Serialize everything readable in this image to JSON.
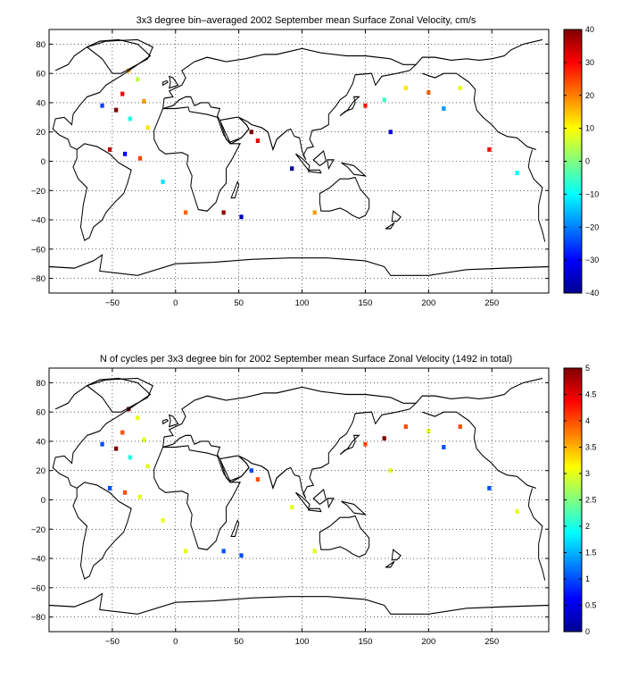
{
  "chart_data": [
    {
      "type": "heatmap",
      "title": "3x3 degree bin–averaged 2002 September mean Surface Zonal Velocity, cm/s",
      "xlabel": "",
      "ylabel": "",
      "xlim": [
        -100,
        295
      ],
      "ylim": [
        -90,
        90
      ],
      "xticks": [
        -50,
        0,
        50,
        100,
        150,
        200,
        250
      ],
      "yticks": [
        -80,
        -60,
        -40,
        -20,
        0,
        20,
        40,
        60,
        80
      ],
      "grid": true,
      "colorbar": {
        "min": -40,
        "max": 40,
        "ticks": [
          -40,
          -30,
          -20,
          -10,
          0,
          10,
          20,
          30,
          40
        ],
        "colormap": "jet"
      },
      "bins_sample": [
        {
          "lon": -37,
          "lat": 62,
          "v": 15
        },
        {
          "lon": -30,
          "lat": 56,
          "v": 5
        },
        {
          "lon": -42,
          "lat": 46,
          "v": 30
        },
        {
          "lon": -25,
          "lat": 41,
          "v": 18
        },
        {
          "lon": -58,
          "lat": 38,
          "v": -25
        },
        {
          "lon": -47,
          "lat": 35,
          "v": 40
        },
        {
          "lon": -36,
          "lat": 29,
          "v": -8
        },
        {
          "lon": -22,
          "lat": 23,
          "v": 12
        },
        {
          "lon": -52,
          "lat": 8,
          "v": 35
        },
        {
          "lon": -40,
          "lat": 5,
          "v": -30
        },
        {
          "lon": -28,
          "lat": 2,
          "v": 25
        },
        {
          "lon": -10,
          "lat": -14,
          "v": -12
        },
        {
          "lon": 8,
          "lat": -35,
          "v": 22
        },
        {
          "lon": 38,
          "lat": -35,
          "v": 38
        },
        {
          "lon": 52,
          "lat": -38,
          "v": -35
        },
        {
          "lon": 60,
          "lat": 20,
          "v": 40
        },
        {
          "lon": 65,
          "lat": 14,
          "v": 32
        },
        {
          "lon": 92,
          "lat": -5,
          "v": -38
        },
        {
          "lon": 110,
          "lat": -35,
          "v": 18
        },
        {
          "lon": 150,
          "lat": 38,
          "v": 28
        },
        {
          "lon": 165,
          "lat": 42,
          "v": -5
        },
        {
          "lon": 182,
          "lat": 50,
          "v": 12
        },
        {
          "lon": 200,
          "lat": 47,
          "v": 22
        },
        {
          "lon": 225,
          "lat": 50,
          "v": 8
        },
        {
          "lon": 212,
          "lat": 36,
          "v": -18
        },
        {
          "lon": 170,
          "lat": 20,
          "v": -30
        },
        {
          "lon": 248,
          "lat": 8,
          "v": 30
        },
        {
          "lon": 270,
          "lat": -8,
          "v": -10
        }
      ]
    },
    {
      "type": "heatmap",
      "title": "N of cycles per 3x3 degree bin for 2002 September mean Surface Zonal Velocity (1492 in total)",
      "xlabel": "",
      "ylabel": "",
      "xlim": [
        -100,
        295
      ],
      "ylim": [
        -90,
        90
      ],
      "xticks": [
        -50,
        0,
        50,
        100,
        150,
        200,
        250
      ],
      "yticks": [
        -80,
        -60,
        -40,
        -20,
        0,
        20,
        40,
        60,
        80
      ],
      "grid": true,
      "colorbar": {
        "min": 0,
        "max": 5,
        "ticks": [
          0,
          0.5,
          1,
          1.5,
          2,
          2.5,
          3,
          3.5,
          4,
          4.5,
          5
        ],
        "colormap": "jet"
      },
      "bins_sample": [
        {
          "lon": -37,
          "lat": 62,
          "v": 5
        },
        {
          "lon": -30,
          "lat": 56,
          "v": 3
        },
        {
          "lon": -42,
          "lat": 46,
          "v": 4
        },
        {
          "lon": -25,
          "lat": 41,
          "v": 3
        },
        {
          "lon": -58,
          "lat": 38,
          "v": 1
        },
        {
          "lon": -47,
          "lat": 35,
          "v": 5
        },
        {
          "lon": -36,
          "lat": 29,
          "v": 2
        },
        {
          "lon": -22,
          "lat": 23,
          "v": 3
        },
        {
          "lon": -52,
          "lat": 8,
          "v": 1
        },
        {
          "lon": -40,
          "lat": 5,
          "v": 4
        },
        {
          "lon": -28,
          "lat": 2,
          "v": 3
        },
        {
          "lon": -10,
          "lat": -14,
          "v": 3
        },
        {
          "lon": 8,
          "lat": -35,
          "v": 3
        },
        {
          "lon": 38,
          "lat": -35,
          "v": 1
        },
        {
          "lon": 52,
          "lat": -38,
          "v": 1
        },
        {
          "lon": 60,
          "lat": 20,
          "v": 1
        },
        {
          "lon": 65,
          "lat": 14,
          "v": 4
        },
        {
          "lon": 92,
          "lat": -5,
          "v": 3
        },
        {
          "lon": 110,
          "lat": -35,
          "v": 3
        },
        {
          "lon": 150,
          "lat": 38,
          "v": 4
        },
        {
          "lon": 165,
          "lat": 42,
          "v": 5
        },
        {
          "lon": 182,
          "lat": 50,
          "v": 4
        },
        {
          "lon": 200,
          "lat": 47,
          "v": 3
        },
        {
          "lon": 225,
          "lat": 50,
          "v": 4
        },
        {
          "lon": 212,
          "lat": 36,
          "v": 1
        },
        {
          "lon": 170,
          "lat": 20,
          "v": 3
        },
        {
          "lon": 248,
          "lat": 8,
          "v": 1
        },
        {
          "lon": 270,
          "lat": -8,
          "v": 3
        }
      ]
    }
  ]
}
